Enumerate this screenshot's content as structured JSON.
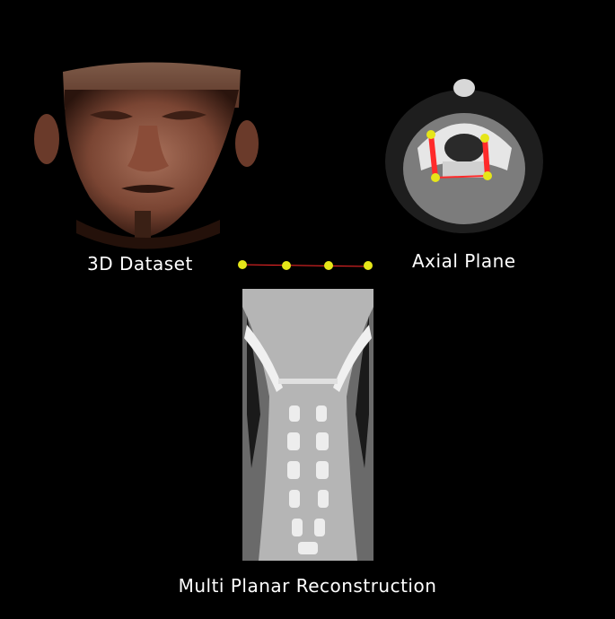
{
  "labels": {
    "dataset_3d": "3D Dataset",
    "axial_plane": "Axial Plane",
    "mpr": "Multi Planar Reconstruction"
  },
  "colors": {
    "background": "#000000",
    "control_point": "#e6e619",
    "curve_line": "#ff2a2a",
    "label_text": "#ffffff"
  },
  "icons": [
    "3d-volume-render-face",
    "axial-ct-slice",
    "curved-path-control-points",
    "mpr-coronal-spine-slice"
  ]
}
